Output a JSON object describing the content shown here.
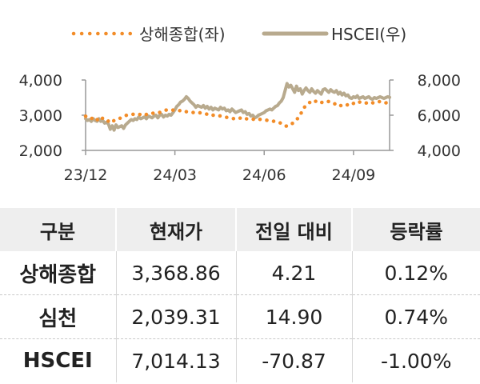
{
  "chart_data": {
    "type": "line",
    "x_ticks": [
      "23/12",
      "24/03",
      "24/06",
      "24/09"
    ],
    "left_axis": {
      "ticks": [
        "4,000",
        "3,000",
        "2,000"
      ],
      "range": [
        2000,
        4000
      ]
    },
    "right_axis": {
      "ticks": [
        "8,000",
        "6,000",
        "4,000"
      ],
      "range": [
        4000,
        8000
      ]
    },
    "legend_position": "top",
    "series": [
      {
        "name": "상해종합(좌)",
        "axis": "left",
        "style": "dotted",
        "color": "#f28c28",
        "x": [
          0,
          3,
          6,
          9,
          12,
          15,
          18,
          21,
          24,
          27,
          30,
          33,
          36,
          39,
          42,
          45,
          48,
          51,
          54,
          57,
          60,
          63,
          66,
          69,
          72,
          75,
          78,
          81,
          84,
          87,
          90,
          93,
          96,
          99,
          100,
          103,
          106,
          109,
          112,
          115,
          118,
          121,
          124,
          127,
          130,
          133,
          136,
          139,
          142,
          145,
          148,
          151,
          154,
          157,
          160,
          163,
          166,
          169,
          172,
          175,
          178,
          181,
          184,
          187,
          190,
          193,
          196,
          199,
          202,
          205,
          208,
          211,
          214,
          217,
          220,
          223,
          226,
          229,
          232,
          235,
          238,
          241,
          244,
          247,
          250,
          253,
          256,
          259,
          262,
          265,
          268,
          271,
          274,
          277,
          280,
          283,
          286,
          289,
          292,
          295,
          298,
          301,
          304,
          307,
          310,
          313,
          316,
          320
        ],
        "values": [
          2970,
          2950,
          2900,
          2950,
          2880,
          2830,
          2920,
          2900,
          2830,
          2780,
          2850,
          2870,
          2910,
          2960,
          2990,
          3010,
          3020,
          3030,
          3040,
          3020,
          3040,
          3010,
          3050,
          3050,
          3060,
          3060,
          3080,
          3120,
          3140,
          3160,
          3150,
          3140,
          3120,
          3130,
          3140,
          3120,
          3100,
          3090,
          3080,
          3070,
          3060,
          3070,
          3050,
          3030,
          3040,
          3000,
          3000,
          2980,
          2980,
          2960,
          2940,
          2930,
          2910,
          2900,
          2890,
          2920,
          2880,
          2900,
          2880,
          2890,
          2880,
          2900,
          2880,
          2870,
          2860,
          2850,
          2840,
          2820,
          2810,
          2780,
          2750,
          2690,
          2700,
          2750,
          2830,
          2900,
          3010,
          3180,
          3280,
          3340,
          3410,
          3380,
          3420,
          3380,
          3350,
          3380,
          3390,
          3360,
          3320,
          3340,
          3280,
          3250,
          3280,
          3310,
          3290,
          3360,
          3340,
          3380,
          3360,
          3340,
          3380,
          3360,
          3340,
          3370,
          3390,
          3360,
          3350,
          3370
        ]
      },
      {
        "name": "HSCEI(우)",
        "axis": "right",
        "style": "solid",
        "color": "#b8aa8e",
        "x": [
          0,
          2,
          4,
          6,
          8,
          10,
          12,
          14,
          16,
          18,
          20,
          22,
          24,
          26,
          28,
          30,
          32,
          34,
          36,
          38,
          40,
          42,
          44,
          46,
          48,
          50,
          52,
          54,
          56,
          58,
          60,
          62,
          64,
          66,
          68,
          70,
          72,
          74,
          76,
          78,
          80,
          82,
          84,
          86,
          88,
          90,
          92,
          94,
          96,
          98,
          100,
          102,
          104,
          106,
          108,
          110,
          112,
          114,
          116,
          118,
          120,
          122,
          124,
          126,
          128,
          130,
          132,
          134,
          136,
          138,
          140,
          142,
          144,
          146,
          148,
          150,
          152,
          154,
          156,
          158,
          160,
          162,
          164,
          166,
          168,
          170,
          172,
          174,
          176,
          178,
          180,
          182,
          184,
          186,
          188,
          190,
          192,
          194,
          196,
          198,
          200,
          202,
          204,
          206,
          208,
          210,
          212,
          214,
          216,
          218,
          220,
          222,
          224,
          226,
          228,
          230,
          232,
          234,
          236,
          238,
          240,
          242,
          244,
          246,
          248,
          250,
          252,
          254,
          256,
          258,
          260,
          262,
          264,
          266,
          268,
          270,
          272,
          274,
          276,
          278,
          280,
          282,
          284,
          286,
          288,
          290,
          292,
          294,
          296,
          298,
          300,
          302,
          304,
          306,
          308,
          310,
          312,
          314,
          316,
          318,
          320
        ],
        "values": [
          5800,
          5700,
          5750,
          5650,
          5800,
          5700,
          5650,
          5800,
          5650,
          5700,
          5550,
          5600,
          5500,
          5200,
          5400,
          5150,
          5450,
          5300,
          5350,
          5400,
          5250,
          5450,
          5550,
          5650,
          5750,
          5700,
          5800,
          5750,
          5900,
          5800,
          5850,
          5900,
          5800,
          5950,
          5900,
          5850,
          5950,
          6000,
          5850,
          6000,
          6050,
          5900,
          6000,
          5950,
          6050,
          6000,
          6150,
          6300,
          6500,
          6600,
          6750,
          6800,
          6900,
          7050,
          6950,
          6800,
          6700,
          6600,
          6450,
          6550,
          6500,
          6450,
          6550,
          6400,
          6500,
          6350,
          6450,
          6300,
          6400,
          6350,
          6300,
          6450,
          6350,
          6400,
          6250,
          6300,
          6200,
          6350,
          6250,
          6150,
          6200,
          6250,
          6300,
          6150,
          6200,
          6050,
          6100,
          5950,
          6000,
          5850,
          5900,
          6000,
          6050,
          6100,
          6150,
          6250,
          6300,
          6350,
          6300,
          6400,
          6500,
          6550,
          6700,
          6800,
          7000,
          7400,
          7800,
          7600,
          7700,
          7500,
          7300,
          7650,
          7400,
          7500,
          7200,
          7400,
          7550,
          7400,
          7300,
          7500,
          7350,
          7250,
          7400,
          7300,
          7200,
          7450,
          7500,
          7400,
          7300,
          7450,
          7350,
          7300,
          7400,
          7200,
          7300,
          7150,
          7250,
          7100,
          7150,
          7000,
          6950,
          7050,
          7000,
          7100,
          6950,
          7000,
          7050,
          6950,
          7000,
          7050,
          6950,
          6900,
          7000,
          6950,
          7000,
          7050,
          7000,
          6950,
          7000,
          7050,
          7014
        ]
      }
    ]
  },
  "table": {
    "headers": [
      "구분",
      "현재가",
      "전일 대비",
      "등락률"
    ],
    "rows": [
      [
        "상해종합",
        "3,368.86",
        "4.21",
        "0.12%"
      ],
      [
        "심천",
        "2,039.31",
        "14.90",
        "0.74%"
      ],
      [
        "HSCEI",
        "7,014.13",
        "-70.87",
        "-1.00%"
      ]
    ]
  }
}
